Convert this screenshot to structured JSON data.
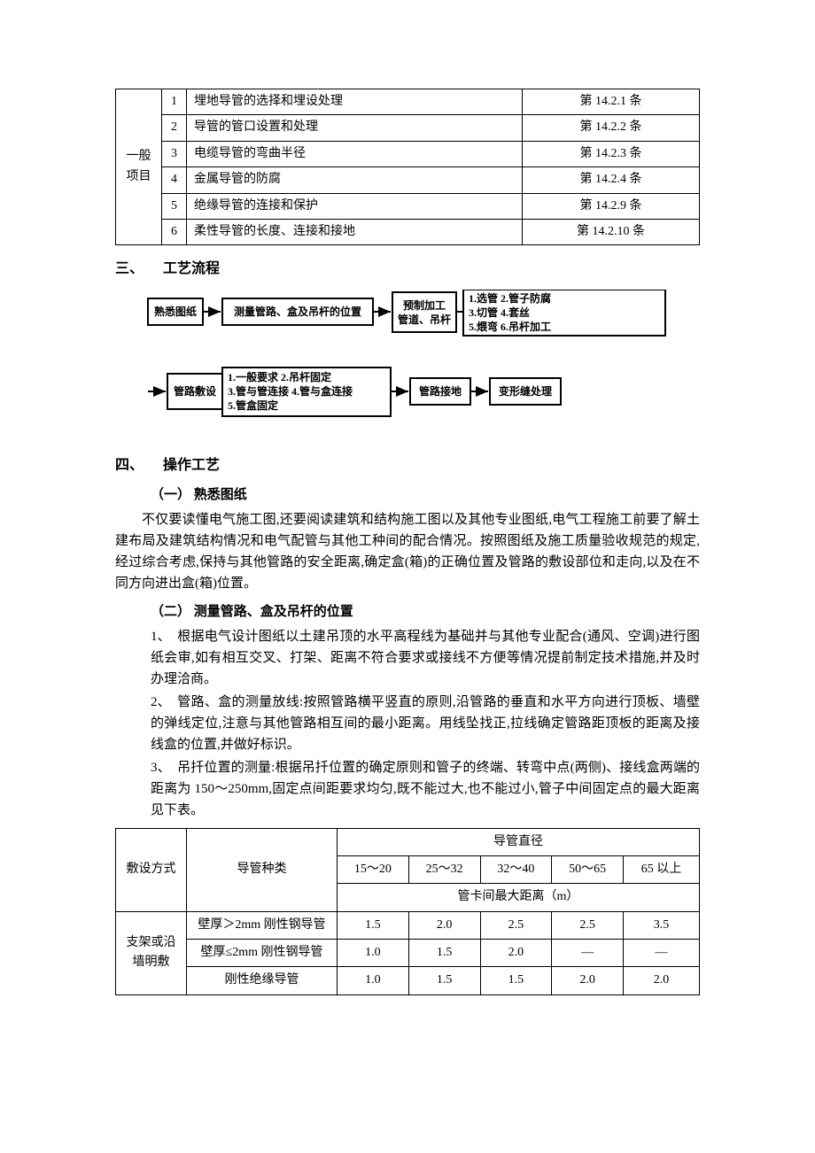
{
  "top_table": {
    "category": "一般\n项目",
    "rows": [
      {
        "n": "1",
        "desc": "埋地导管的选择和埋设处理",
        "ref": "第 14.2.1 条"
      },
      {
        "n": "2",
        "desc": "导管的管口设置和处理",
        "ref": "第 14.2.2 条"
      },
      {
        "n": "3",
        "desc": "电缆导管的弯曲半径",
        "ref": "第 14.2.3 条"
      },
      {
        "n": "4",
        "desc": "金属导管的防腐",
        "ref": "第 14.2.4 条"
      },
      {
        "n": "5",
        "desc": "绝缘导管的连接和保护",
        "ref": "第 14.2.9 条"
      },
      {
        "n": "6",
        "desc": "柔性导管的长度、连接和接地",
        "ref": "第 14.2.10 条"
      }
    ]
  },
  "sections": {
    "s3": {
      "num": "三、",
      "title": "工艺流程"
    },
    "s4": {
      "num": "四、",
      "title": "操作工艺"
    }
  },
  "flow": {
    "row1": {
      "b1": "熟悉图纸",
      "b2": "测量管路、盒及吊杆的位置",
      "b3_l1": "预制加工",
      "b3_l2": "管道、吊杆",
      "b4_lines": [
        "1.选管   2.管子防腐",
        "3.切管   4.套丝",
        "5.煨弯   6.吊杆加工"
      ]
    },
    "row2": {
      "b1": "管路敷设",
      "b1_detail": [
        "1.一般要求   2.吊杆固定",
        "3.管与管连接 4.管与盒连接",
        "5.管盒固定"
      ],
      "b2": "管路接地",
      "b3": "变形缝处理"
    }
  },
  "s4": {
    "sub1": {
      "num": "（一）",
      "title": "熟悉图纸"
    },
    "p1": "不仅要读懂电气施工图,还要阅读建筑和结构施工图以及其他专业图纸,电气工程施工前要了解土建布局及建筑结构情况和电气配管与其他工种间的配合情况。按照图纸及施工质量验收规范的规定,经过综合考虑,保持与其他管路的安全距离,确定盒(箱)的正确位置及管路的敷设部位和走向,以及在不同方向进出盒(箱)位置。",
    "sub2": {
      "num": "（二）",
      "title": "测量管路、盒及吊杆的位置"
    },
    "list2": [
      "根据电气设计图纸以土建吊顶的水平高程线为基础并与其他专业配合(通风、空调)进行图纸会审,如有相互交叉、打架、距离不符合要求或接线不方便等情况提前制定技术措施,并及时办理洽商。",
      "管路、盒的测量放线:按照管路横平竖直的原则,沿管路的垂直和水平方向进行顶板、墙壁的弹线定位,注意与其他管路相互间的最小距离。用线坠找正,拉线确定管路距顶板的距离及接线盒的位置,并做好标识。",
      "吊扦位置的测量:根据吊扦位置的确定原则和管子的终端、转弯中点(两侧)、接线盒两端的距离为 150～250mm,固定点间距要求均匀,既不能过大,也不能过小,管子中间固定点的最大距离见下表。"
    ]
  },
  "spec_table": {
    "h_lay": "敷设方式",
    "h_type": "导管种类",
    "h_dia": "导管直径",
    "h_sub": "管卡间最大距离（m）",
    "dia_cols": [
      "15～20",
      "25～32",
      "32～40",
      "50～65",
      "65 以上"
    ],
    "lay": "支架或沿\n墙明敷",
    "rows": [
      {
        "type": "壁厚＞2mm 刚性钢导管",
        "v": [
          "1.5",
          "2.0",
          "2.5",
          "2.5",
          "3.5"
        ]
      },
      {
        "type": "壁厚≤2mm 刚性钢导管",
        "v": [
          "1.0",
          "1.5",
          "2.0",
          "—",
          "—"
        ]
      },
      {
        "type": "刚性绝缘导管",
        "v": [
          "1.0",
          "1.5",
          "1.5",
          "2.0",
          "2.0"
        ]
      }
    ]
  }
}
